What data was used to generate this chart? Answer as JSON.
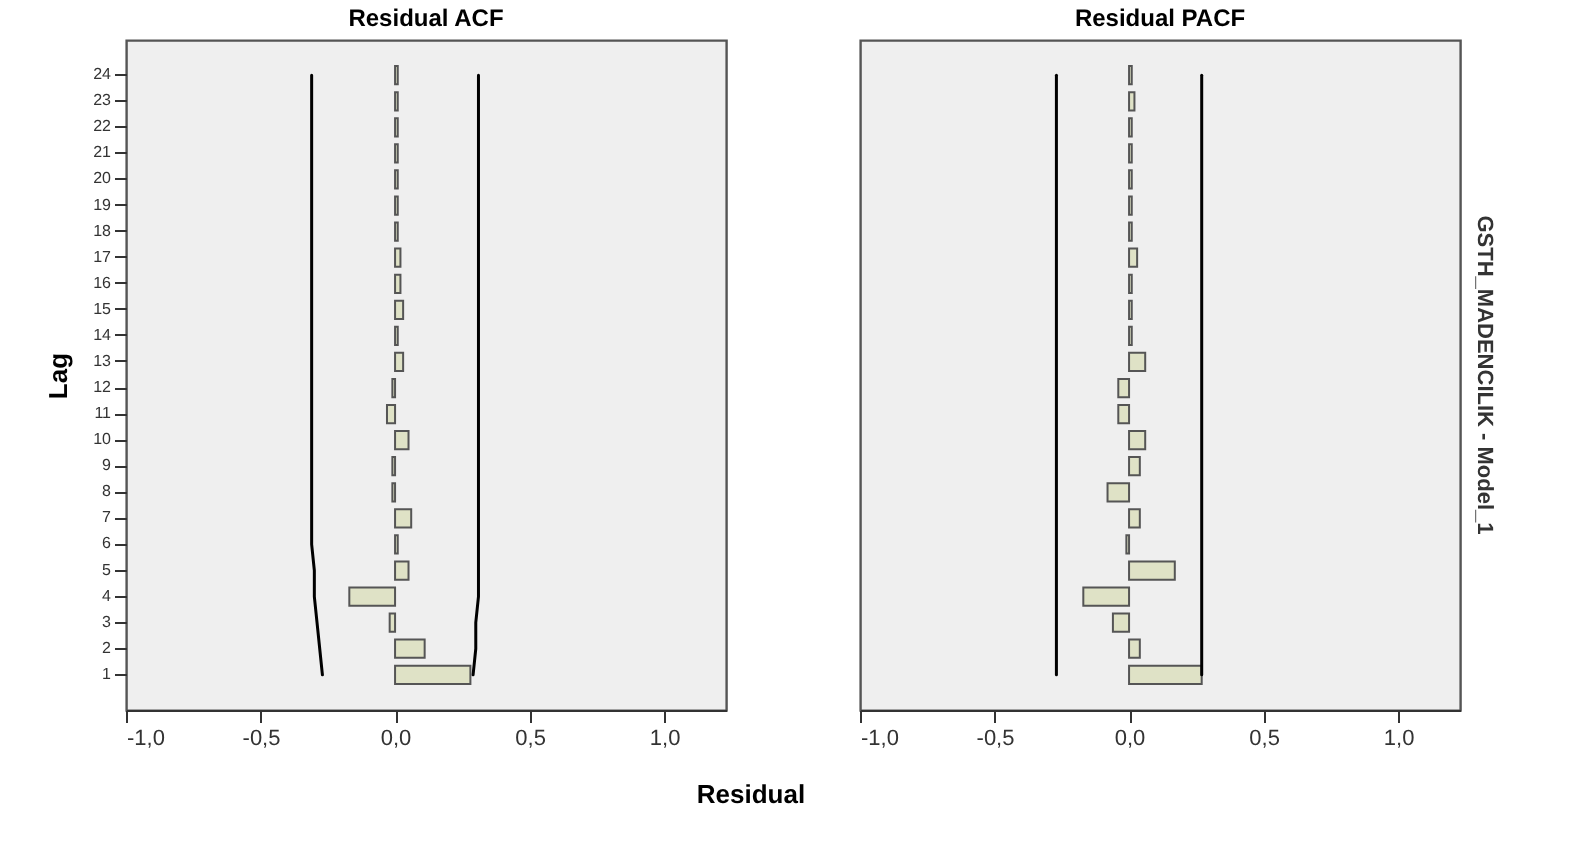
{
  "chart_data": [
    {
      "type": "bar",
      "title": "Residual ACF",
      "xlabel": "Residual",
      "ylabel": "Lag",
      "orientation": "horizontal",
      "categories": [
        "24",
        "23",
        "22",
        "21",
        "20",
        "19",
        "18",
        "17",
        "16",
        "15",
        "14",
        "13",
        "12",
        "11",
        "10",
        "9",
        "8",
        "7",
        "6",
        "5",
        "4",
        "3",
        "2",
        "1"
      ],
      "series": [
        {
          "type": "bar",
          "color": "#dfe2c6",
          "values": [
            0.01,
            0.01,
            0.01,
            0.01,
            0.01,
            0.01,
            0.01,
            0.02,
            0.02,
            0.03,
            0.01,
            0.03,
            -0.01,
            -0.03,
            0.05,
            -0.01,
            -0.01,
            0.06,
            0.01,
            0.05,
            -0.17,
            -0.02,
            0.11,
            0.28
          ]
        },
        {
          "type": "line",
          "color": "#000000",
          "values": [
            0.31,
            0.31,
            0.31,
            0.31,
            0.31,
            0.31,
            0.31,
            0.31,
            0.31,
            0.31,
            0.31,
            0.31,
            0.31,
            0.31,
            0.31,
            0.31,
            0.31,
            0.31,
            0.31,
            0.31,
            0.31,
            0.3,
            0.3,
            0.29
          ]
        },
        {
          "type": "line",
          "color": "#000000",
          "values": [
            -0.31,
            -0.31,
            -0.31,
            -0.31,
            -0.31,
            -0.31,
            -0.31,
            -0.31,
            -0.31,
            -0.31,
            -0.31,
            -0.31,
            -0.31,
            -0.31,
            -0.31,
            -0.31,
            -0.31,
            -0.31,
            -0.31,
            -0.3,
            -0.3,
            -0.29,
            -0.28,
            -0.27
          ]
        }
      ],
      "xlim": [
        -1,
        1.23
      ],
      "xticks": [
        {
          "value": -1,
          "label": "-1,0"
        },
        {
          "value": -0.5,
          "label": "-0,5"
        },
        {
          "value": 0,
          "label": "0,0"
        },
        {
          "value": 0.5,
          "label": "0,5"
        },
        {
          "value": 1,
          "label": "1,0"
        }
      ]
    },
    {
      "type": "bar",
      "title": "Residual PACF",
      "orientation": "horizontal",
      "tick_labels": "x",
      "annotations": [
        "GSTH_MADENCILIK - Model_1"
      ],
      "categories": [
        "24",
        "23",
        "22",
        "21",
        "20",
        "19",
        "18",
        "17",
        "16",
        "15",
        "14",
        "13",
        "12",
        "11",
        "10",
        "9",
        "8",
        "7",
        "6",
        "5",
        "4",
        "3",
        "2",
        "1"
      ],
      "series": [
        {
          "type": "bar",
          "color": "#dfe2c6",
          "values": [
            0.01,
            0.02,
            0.01,
            0.01,
            0.01,
            0.01,
            0.01,
            0.03,
            0.01,
            0.01,
            0.01,
            0.06,
            -0.04,
            -0.04,
            0.06,
            0.04,
            -0.08,
            0.04,
            -0.01,
            0.17,
            -0.17,
            -0.06,
            0.04,
            0.27
          ]
        },
        {
          "type": "line",
          "color": "#000000",
          "values": [
            0.27,
            0.27,
            0.27,
            0.27,
            0.27,
            0.27,
            0.27,
            0.27,
            0.27,
            0.27,
            0.27,
            0.27,
            0.27,
            0.27,
            0.27,
            0.27,
            0.27,
            0.27,
            0.27,
            0.27,
            0.27,
            0.27,
            0.27,
            0.27
          ]
        },
        {
          "type": "line",
          "color": "#000000",
          "values": [
            -0.27,
            -0.27,
            -0.27,
            -0.27,
            -0.27,
            -0.27,
            -0.27,
            -0.27,
            -0.27,
            -0.27,
            -0.27,
            -0.27,
            -0.27,
            -0.27,
            -0.27,
            -0.27,
            -0.27,
            -0.27,
            -0.27,
            -0.27,
            -0.27,
            -0.27,
            -0.27,
            -0.27
          ]
        }
      ],
      "xlim": [
        -1,
        1.23
      ],
      "xticks": [
        {
          "value": -1,
          "label": "-1,0"
        },
        {
          "value": -0.5,
          "label": "-0,5"
        },
        {
          "value": 0,
          "label": "0,0"
        },
        {
          "value": 0.5,
          "label": "0,5"
        },
        {
          "value": 1,
          "label": "1,0"
        }
      ]
    }
  ]
}
